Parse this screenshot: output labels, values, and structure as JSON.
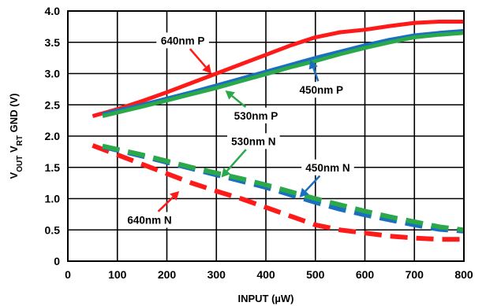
{
  "chart_data": {
    "type": "line",
    "xlabel": "INPUT (µW)",
    "ylabel": {
      "prefix": "V",
      "sub1": "OUT",
      "mid": " V",
      "sub2": "RT",
      "suffix": " GND (V)"
    },
    "xlim": [
      0,
      800
    ],
    "ylim": [
      0,
      4.0
    ],
    "xticks": [
      0,
      100,
      200,
      300,
      400,
      500,
      600,
      700,
      800
    ],
    "yticks": [
      0,
      0.5,
      1.0,
      1.5,
      2.0,
      2.5,
      3.0,
      3.5,
      4.0
    ],
    "xtick_labels": [
      "0",
      "100",
      "200",
      "300",
      "400",
      "500",
      "600",
      "700",
      "800"
    ],
    "ytick_labels": [
      "0",
      "0.5",
      "1.0",
      "1.5",
      "2.0",
      "2.5",
      "3.0",
      "3.5",
      "4.0"
    ],
    "grid": true,
    "series": [
      {
        "name": "640nm P",
        "color": "#ff1a1a",
        "style": "solid",
        "x": [
          50,
          100,
          150,
          200,
          250,
          300,
          350,
          400,
          450,
          500,
          550,
          600,
          650,
          700,
          750,
          800
        ],
        "y": [
          2.32,
          2.43,
          2.56,
          2.7,
          2.85,
          3.0,
          3.15,
          3.3,
          3.45,
          3.58,
          3.66,
          3.7,
          3.76,
          3.81,
          3.83,
          3.83
        ]
      },
      {
        "name": "450nm P",
        "color": "#1a6fc0",
        "style": "solid",
        "x": [
          70,
          150,
          200,
          250,
          300,
          350,
          400,
          450,
          500,
          550,
          600,
          650,
          700,
          750,
          800
        ],
        "y": [
          2.35,
          2.5,
          2.6,
          2.7,
          2.81,
          2.92,
          3.03,
          3.14,
          3.25,
          3.35,
          3.45,
          3.54,
          3.61,
          3.65,
          3.68
        ]
      },
      {
        "name": "530nm P",
        "color": "#2aa84a",
        "style": "solid",
        "x": [
          70,
          150,
          200,
          250,
          300,
          350,
          400,
          450,
          500,
          550,
          600,
          650,
          700,
          750,
          800
        ],
        "y": [
          2.32,
          2.47,
          2.57,
          2.67,
          2.77,
          2.88,
          2.99,
          3.1,
          3.2,
          3.31,
          3.41,
          3.5,
          3.58,
          3.62,
          3.65
        ]
      },
      {
        "name": "640nm N",
        "color": "#ff1a1a",
        "style": "dashed",
        "x": [
          50,
          100,
          150,
          200,
          250,
          300,
          350,
          400,
          450,
          500,
          550,
          600,
          650,
          700,
          750,
          800
        ],
        "y": [
          1.85,
          1.7,
          1.55,
          1.4,
          1.25,
          1.12,
          1.0,
          0.86,
          0.72,
          0.58,
          0.5,
          0.45,
          0.4,
          0.37,
          0.35,
          0.35
        ]
      },
      {
        "name": "450nm N",
        "color": "#1a6fc0",
        "style": "dashed",
        "x": [
          70,
          150,
          200,
          250,
          300,
          350,
          400,
          450,
          500,
          550,
          600,
          650,
          700,
          750,
          800
        ],
        "y": [
          1.83,
          1.68,
          1.58,
          1.48,
          1.38,
          1.28,
          1.18,
          1.06,
          0.94,
          0.83,
          0.74,
          0.66,
          0.58,
          0.51,
          0.48
        ]
      },
      {
        "name": "530nm N",
        "color": "#2aa84a",
        "style": "dashed",
        "x": [
          70,
          150,
          200,
          250,
          300,
          350,
          400,
          450,
          500,
          550,
          600,
          650,
          700,
          750,
          800
        ],
        "y": [
          1.84,
          1.7,
          1.6,
          1.5,
          1.41,
          1.32,
          1.22,
          1.11,
          1.0,
          0.9,
          0.8,
          0.71,
          0.63,
          0.55,
          0.5
        ]
      }
    ],
    "annotations": [
      {
        "text": "640nm P",
        "label_at": [
          232,
          3.53
        ],
        "arrow_to": [
          290,
          3.0
        ],
        "color": "#ff1a1a"
      },
      {
        "text": "450nm P",
        "label_at": [
          512,
          2.74
        ],
        "arrow_to": [
          490,
          3.22
        ],
        "color": "#1a6fc0"
      },
      {
        "text": "530nm P",
        "label_at": [
          380,
          2.33
        ],
        "arrow_to": [
          318,
          2.73
        ],
        "color": "#2aa84a"
      },
      {
        "text": "530nm N",
        "label_at": [
          375,
          1.92
        ],
        "arrow_to": [
          310,
          1.34
        ],
        "color": "#2aa84a"
      },
      {
        "text": "450nm N",
        "label_at": [
          525,
          1.5
        ],
        "arrow_to": [
          468,
          1.02
        ],
        "color": "#1a6fc0"
      },
      {
        "text": "640nm N",
        "label_at": [
          165,
          0.66
        ],
        "arrow_to": [
          225,
          1.12
        ],
        "color": "#ff1a1a"
      }
    ]
  }
}
